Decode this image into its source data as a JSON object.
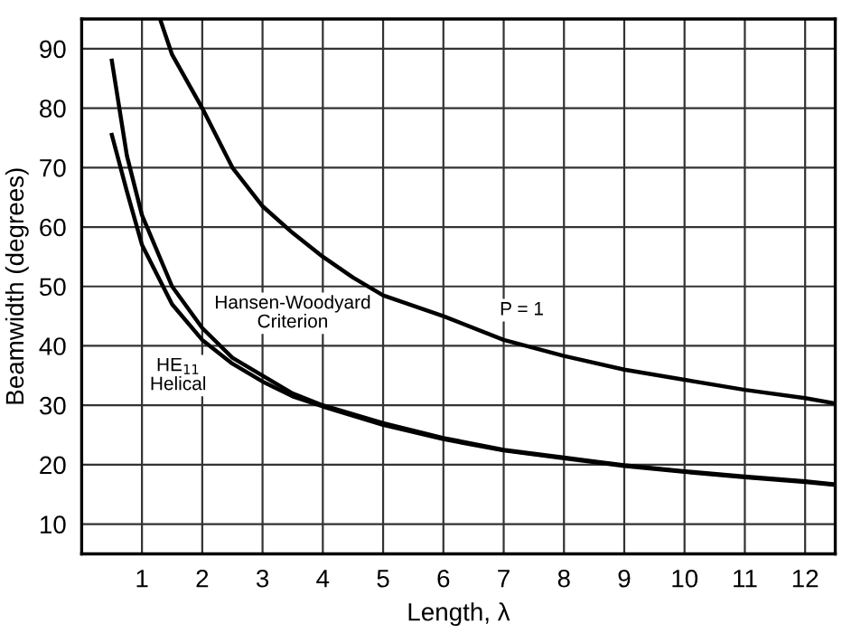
{
  "chart_data": {
    "type": "line",
    "xlabel": "Length, λ",
    "ylabel": "Beamwidth (degrees)",
    "xlim": [
      0,
      12.5
    ],
    "ylim": [
      5,
      95
    ],
    "xticks": [
      1,
      2,
      3,
      4,
      5,
      6,
      7,
      8,
      9,
      10,
      11,
      12
    ],
    "yticks": [
      10,
      20,
      30,
      40,
      50,
      60,
      70,
      80,
      90
    ],
    "grid": true,
    "legend": false,
    "marker": "none",
    "line_style": "solid",
    "series": [
      {
        "name": "Hansen-Woodyard\nCriterion",
        "color": "#000000",
        "x": [
          0.5,
          0.75,
          1,
          1.5,
          2,
          2.5,
          3,
          3.5,
          4,
          5,
          6,
          7,
          8,
          9,
          10,
          11,
          12,
          12.5
        ],
        "values": [
          88,
          72,
          62,
          50,
          43,
          38,
          35,
          32,
          30,
          27,
          24.5,
          22.5,
          21.2,
          19.9,
          18.9,
          18,
          17.2,
          16.7
        ]
      },
      {
        "name": "HE$_{11}$\nHelical",
        "color": "#000000",
        "x": [
          0.5,
          0.75,
          1,
          1.5,
          2,
          2.5,
          3,
          3.5,
          4,
          5,
          6,
          7,
          8,
          9,
          10,
          11,
          12,
          12.5
        ],
        "values": [
          75.5,
          66,
          57,
          47,
          41,
          37,
          34,
          31.5,
          29.8,
          26.7,
          24.3,
          22.4,
          21.1,
          19.8,
          18.8,
          17.9,
          17.1,
          16.6
        ]
      },
      {
        "name": "P = 1",
        "color": "#000000",
        "x": [
          1.3,
          1.5,
          2,
          2.5,
          3,
          3.5,
          4,
          4.5,
          5,
          6,
          7,
          8,
          9,
          10,
          11,
          12,
          12.5
        ],
        "values": [
          95,
          89,
          80,
          70,
          63.5,
          59,
          55,
          51.5,
          48.5,
          45,
          41,
          38.3,
          36,
          34.3,
          32.6,
          31.2,
          30.3
        ]
      }
    ]
  }
}
